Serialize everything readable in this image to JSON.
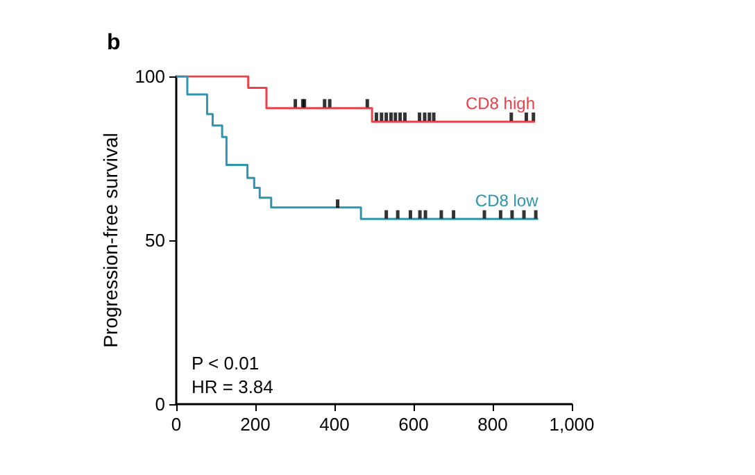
{
  "chart_data": {
    "type": "step",
    "title": "b",
    "ylabel": "Progression-free survival",
    "xlim": [
      0,
      1000
    ],
    "xticks": [
      0,
      200,
      400,
      600,
      800,
      {
        "value": 1000,
        "label": "1,000"
      }
    ],
    "ylim": [
      0,
      100
    ],
    "yticks": [
      0,
      50,
      100
    ],
    "grid": false,
    "legend": false,
    "annotations": [
      "P < 0.01",
      "HR = 3.84"
    ],
    "series": [
      {
        "name": "CD8 high",
        "color": "#ee4048",
        "x": [
          0,
          182,
          228,
          495,
          907
        ],
        "values": [
          100,
          96.5,
          90.3,
          86.2,
          86.2
        ]
      },
      {
        "name": "CD8 low",
        "color": "#2e95b0",
        "x": [
          0,
          28,
          78,
          92,
          116,
          127,
          180,
          197,
          211,
          240,
          467,
          915
        ],
        "values": [
          100,
          94.5,
          88.5,
          85,
          81.5,
          73,
          69,
          66,
          63,
          60,
          56.5,
          56.5
        ]
      },
      {
        "type": "scatter",
        "color": "#000000",
        "marker": "square",
        "x": [
          301,
          320,
          324,
          375,
          388,
          483,
          506,
          519,
          531,
          543,
          554,
          566,
          578,
          615,
          628,
          640,
          651,
          847,
          885,
          903
        ],
        "values": [
          91.8,
          91.8,
          91.8,
          91.8,
          91.8,
          91.8,
          87.7,
          87.7,
          87.7,
          87.7,
          87.7,
          87.7,
          87.7,
          87.7,
          87.7,
          87.7,
          87.7,
          87.7,
          87.7,
          87.7
        ]
      },
      {
        "type": "scatter",
        "color": "#000000",
        "marker": "square",
        "x": [
          408,
          531,
          560,
          592,
          616,
          630,
          670,
          701,
          779,
          820,
          849,
          879,
          909
        ],
        "values": [
          61.2,
          57.9,
          57.9,
          57.9,
          57.9,
          57.9,
          57.9,
          57.9,
          57.9,
          57.9,
          57.9,
          57.9,
          57.9
        ]
      }
    ]
  }
}
